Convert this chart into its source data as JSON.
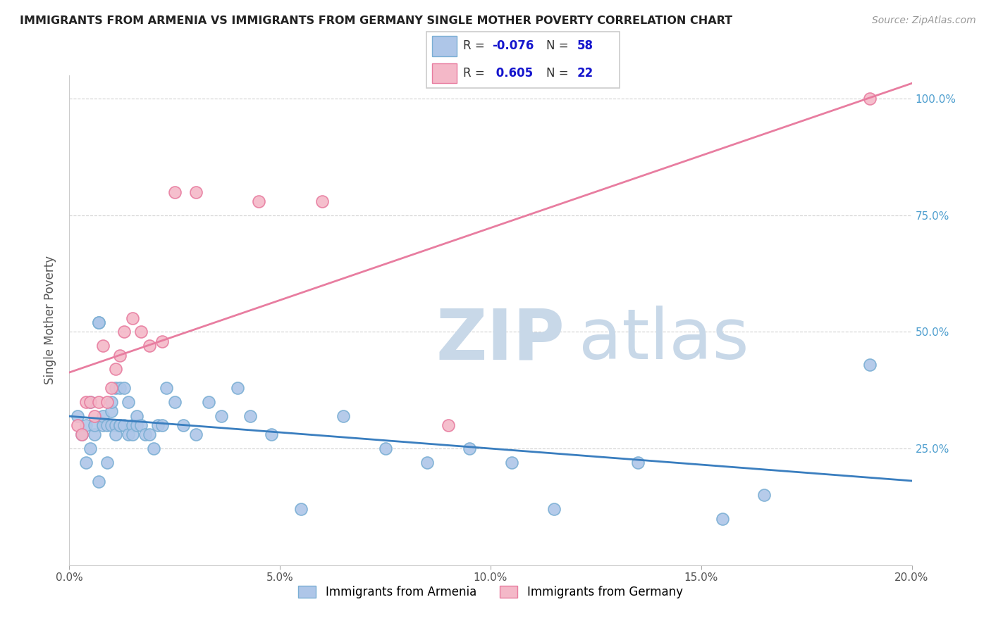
{
  "title": "IMMIGRANTS FROM ARMENIA VS IMMIGRANTS FROM GERMANY SINGLE MOTHER POVERTY CORRELATION CHART",
  "source": "Source: ZipAtlas.com",
  "ylabel": "Single Mother Poverty",
  "xlim": [
    0.0,
    0.2
  ],
  "ylim": [
    0.0,
    1.05
  ],
  "xticks": [
    0.0,
    0.05,
    0.1,
    0.15,
    0.2
  ],
  "xtick_labels": [
    "0.0%",
    "5.0%",
    "10.0%",
    "15.0%",
    "20.0%"
  ],
  "yticks_right": [
    0.25,
    0.5,
    0.75,
    1.0
  ],
  "ytick_labels_right": [
    "25.0%",
    "50.0%",
    "75.0%",
    "100.0%"
  ],
  "grid_color": "#cccccc",
  "background_color": "#ffffff",
  "armenia_color": "#aec6e8",
  "armenia_edge_color": "#7bafd4",
  "germany_color": "#f4b8c8",
  "germany_edge_color": "#e87da0",
  "armenia_R": -0.076,
  "armenia_N": 58,
  "germany_R": 0.605,
  "germany_N": 22,
  "armenia_line_color": "#3a7ebf",
  "germany_line_color": "#e87da0",
  "armenia_scatter_x": [
    0.002,
    0.003,
    0.004,
    0.004,
    0.005,
    0.005,
    0.006,
    0.006,
    0.007,
    0.007,
    0.007,
    0.008,
    0.008,
    0.009,
    0.009,
    0.01,
    0.01,
    0.01,
    0.011,
    0.011,
    0.011,
    0.012,
    0.012,
    0.012,
    0.013,
    0.013,
    0.014,
    0.014,
    0.015,
    0.015,
    0.016,
    0.016,
    0.017,
    0.018,
    0.019,
    0.02,
    0.021,
    0.022,
    0.023,
    0.025,
    0.027,
    0.03,
    0.033,
    0.036,
    0.04,
    0.043,
    0.048,
    0.055,
    0.065,
    0.075,
    0.085,
    0.095,
    0.105,
    0.115,
    0.135,
    0.155,
    0.165,
    0.19
  ],
  "armenia_scatter_y": [
    0.32,
    0.28,
    0.22,
    0.3,
    0.25,
    0.35,
    0.28,
    0.3,
    0.52,
    0.52,
    0.18,
    0.3,
    0.32,
    0.22,
    0.3,
    0.33,
    0.3,
    0.35,
    0.3,
    0.38,
    0.28,
    0.38,
    0.3,
    0.3,
    0.38,
    0.3,
    0.28,
    0.35,
    0.3,
    0.28,
    0.3,
    0.32,
    0.3,
    0.28,
    0.28,
    0.25,
    0.3,
    0.3,
    0.38,
    0.35,
    0.3,
    0.28,
    0.35,
    0.32,
    0.38,
    0.32,
    0.28,
    0.12,
    0.32,
    0.25,
    0.22,
    0.25,
    0.22,
    0.12,
    0.22,
    0.1,
    0.15,
    0.43
  ],
  "germany_scatter_x": [
    0.002,
    0.003,
    0.004,
    0.005,
    0.006,
    0.007,
    0.008,
    0.009,
    0.01,
    0.011,
    0.012,
    0.013,
    0.015,
    0.017,
    0.019,
    0.022,
    0.025,
    0.03,
    0.045,
    0.06,
    0.09,
    0.19
  ],
  "germany_scatter_y": [
    0.3,
    0.28,
    0.35,
    0.35,
    0.32,
    0.35,
    0.47,
    0.35,
    0.38,
    0.42,
    0.45,
    0.5,
    0.53,
    0.5,
    0.47,
    0.48,
    0.8,
    0.8,
    0.78,
    0.78,
    0.3,
    1.0
  ]
}
